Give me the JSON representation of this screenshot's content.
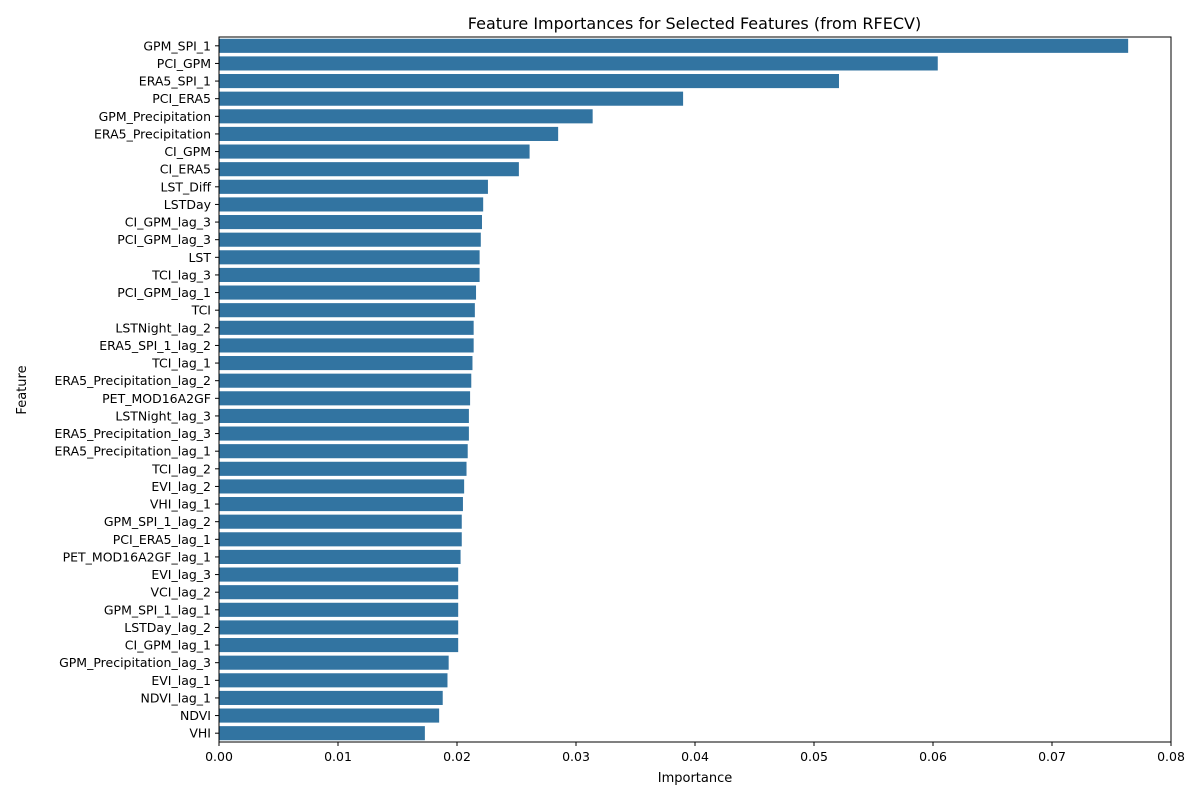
{
  "chart_data": {
    "type": "bar",
    "orientation": "horizontal",
    "title": "Feature Importances for Selected Features (from RFECV)",
    "xlabel": "Importance",
    "ylabel": "Feature",
    "xlim": [
      0,
      0.08
    ],
    "xticks": [
      "0.00",
      "0.01",
      "0.02",
      "0.03",
      "0.04",
      "0.05",
      "0.06",
      "0.07",
      "0.08"
    ],
    "grid": false,
    "legend": "none",
    "bar_color": "#3274a1",
    "categories": [
      "GPM_SPI_1",
      "PCI_GPM",
      "ERA5_SPI_1",
      "PCI_ERA5",
      "GPM_Precipitation",
      "ERA5_Precipitation",
      "CI_GPM",
      "CI_ERA5",
      "LST_Diff",
      "LSTDay",
      "CI_GPM_lag_3",
      "PCI_GPM_lag_3",
      "LST",
      "TCI_lag_3",
      "PCI_GPM_lag_1",
      "TCI",
      "LSTNight_lag_2",
      "ERA5_SPI_1_lag_2",
      "TCI_lag_1",
      "ERA5_Precipitation_lag_2",
      "PET_MOD16A2GF",
      "LSTNight_lag_3",
      "ERA5_Precipitation_lag_3",
      "ERA5_Precipitation_lag_1",
      "TCI_lag_2",
      "EVI_lag_2",
      "VHI_lag_1",
      "GPM_SPI_1_lag_2",
      "PCI_ERA5_lag_1",
      "PET_MOD16A2GF_lag_1",
      "EVI_lag_3",
      "VCI_lag_2",
      "GPM_SPI_1_lag_1",
      "LSTDay_lag_2",
      "CI_GPM_lag_1",
      "GPM_Precipitation_lag_3",
      "EVI_lag_1",
      "NDVI_lag_1",
      "NDVI",
      "VHI"
    ],
    "values": [
      0.0764,
      0.0604,
      0.0521,
      0.039,
      0.0314,
      0.0285,
      0.0261,
      0.0252,
      0.0226,
      0.0222,
      0.0221,
      0.022,
      0.0219,
      0.0219,
      0.0216,
      0.0215,
      0.0214,
      0.0214,
      0.0213,
      0.0212,
      0.0211,
      0.021,
      0.021,
      0.0209,
      0.0208,
      0.0206,
      0.0205,
      0.0204,
      0.0204,
      0.0203,
      0.0201,
      0.0201,
      0.0201,
      0.0201,
      0.0201,
      0.0193,
      0.0192,
      0.0188,
      0.0185,
      0.0173
    ]
  }
}
